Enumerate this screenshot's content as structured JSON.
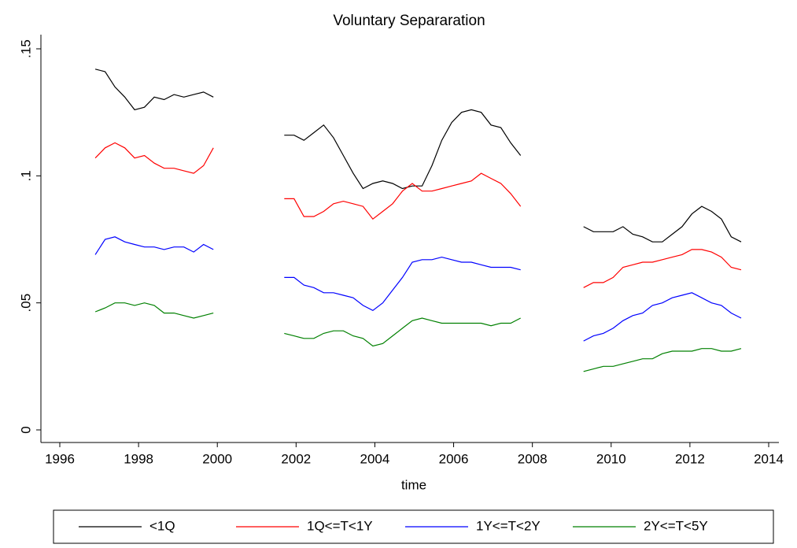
{
  "chart_data": {
    "type": "line",
    "title": "Voluntary Separaration",
    "x_label": "time",
    "x": [
      1996.9,
      1997.15,
      1997.4,
      1997.65,
      1997.9,
      1998.15,
      1998.4,
      1998.65,
      1998.9,
      1999.15,
      1999.4,
      1999.65,
      1999.9,
      2000.8,
      2001.7,
      2001.95,
      2002.2,
      2002.45,
      2002.7,
      2002.95,
      2003.2,
      2003.45,
      2003.7,
      2003.95,
      2004.2,
      2004.45,
      2004.7,
      2004.95,
      2005.2,
      2005.45,
      2005.7,
      2005.95,
      2006.2,
      2006.45,
      2006.7,
      2006.95,
      2007.2,
      2007.45,
      2007.7,
      2008.5,
      2009.3,
      2009.55,
      2009.8,
      2010.05,
      2010.3,
      2010.55,
      2010.8,
      2011.05,
      2011.3,
      2011.55,
      2011.8,
      2012.05,
      2012.3,
      2012.55,
      2012.8,
      2013.05,
      2013.3
    ],
    "series": [
      {
        "name": "<1Q",
        "color": "#000000",
        "values": [
          0.142,
          0.141,
          0.135,
          0.131,
          0.126,
          0.127,
          0.131,
          0.13,
          0.132,
          0.131,
          0.132,
          0.133,
          0.131,
          null,
          0.116,
          0.116,
          0.114,
          0.117,
          0.12,
          0.115,
          0.108,
          0.101,
          0.095,
          0.097,
          0.098,
          0.097,
          0.095,
          0.096,
          0.096,
          0.104,
          0.114,
          0.121,
          0.125,
          0.126,
          0.125,
          0.12,
          0.119,
          0.113,
          0.108,
          null,
          0.08,
          0.078,
          0.078,
          0.078,
          0.08,
          0.077,
          0.076,
          0.074,
          0.074,
          0.077,
          0.08,
          0.085,
          0.088,
          0.086,
          0.083,
          0.076,
          0.074
        ]
      },
      {
        "name": "1Q<=T<1Y",
        "color": "#ff0000",
        "values": [
          0.107,
          0.111,
          0.113,
          0.111,
          0.107,
          0.108,
          0.105,
          0.103,
          0.103,
          0.102,
          0.101,
          0.104,
          0.111,
          null,
          0.091,
          0.091,
          0.084,
          0.084,
          0.086,
          0.089,
          0.09,
          0.089,
          0.088,
          0.083,
          0.086,
          0.089,
          0.094,
          0.097,
          0.094,
          0.094,
          0.095,
          0.096,
          0.097,
          0.098,
          0.101,
          0.099,
          0.097,
          0.093,
          0.088,
          null,
          0.056,
          0.058,
          0.058,
          0.06,
          0.064,
          0.065,
          0.066,
          0.066,
          0.067,
          0.068,
          0.069,
          0.071,
          0.071,
          0.07,
          0.068,
          0.064,
          0.063
        ]
      },
      {
        "name": "1Y<=T<2Y",
        "color": "#0000ff",
        "values": [
          0.069,
          0.075,
          0.076,
          0.074,
          0.073,
          0.072,
          0.072,
          0.071,
          0.072,
          0.072,
          0.07,
          0.073,
          0.071,
          null,
          0.06,
          0.06,
          0.057,
          0.056,
          0.054,
          0.054,
          0.053,
          0.052,
          0.049,
          0.047,
          0.05,
          0.055,
          0.06,
          0.066,
          0.067,
          0.067,
          0.068,
          0.067,
          0.066,
          0.066,
          0.065,
          0.064,
          0.064,
          0.064,
          0.063,
          null,
          0.035,
          0.037,
          0.038,
          0.04,
          0.043,
          0.045,
          0.046,
          0.049,
          0.05,
          0.052,
          0.053,
          0.054,
          0.052,
          0.05,
          0.049,
          0.046,
          0.044
        ]
      },
      {
        "name": "2Y<=T<5Y",
        "color": "#008000",
        "values": [
          0.0465,
          0.048,
          0.05,
          0.05,
          0.049,
          0.05,
          0.049,
          0.046,
          0.046,
          0.045,
          0.044,
          0.045,
          0.046,
          null,
          0.038,
          0.037,
          0.036,
          0.036,
          0.038,
          0.039,
          0.039,
          0.037,
          0.036,
          0.033,
          0.034,
          0.037,
          0.04,
          0.043,
          0.044,
          0.043,
          0.042,
          0.042,
          0.042,
          0.042,
          0.042,
          0.041,
          0.042,
          0.042,
          0.044,
          null,
          0.023,
          0.024,
          0.025,
          0.025,
          0.026,
          0.027,
          0.028,
          0.028,
          0.03,
          0.031,
          0.031,
          0.031,
          0.032,
          0.032,
          0.031,
          0.031,
          0.032
        ]
      }
    ],
    "xlim": [
      1996,
      2014
    ],
    "xticks": [
      1996,
      1998,
      2000,
      2002,
      2004,
      2006,
      2008,
      2010,
      2012,
      2014
    ],
    "ylim": [
      0,
      0.15
    ],
    "yticks": [
      0,
      {
        "value": 0.05,
        "label": ".05"
      },
      {
        "value": 0.1,
        "label": ".1"
      },
      {
        "value": 0.15,
        "label": ".15"
      }
    ],
    "grid": false,
    "legend": "bottom"
  }
}
